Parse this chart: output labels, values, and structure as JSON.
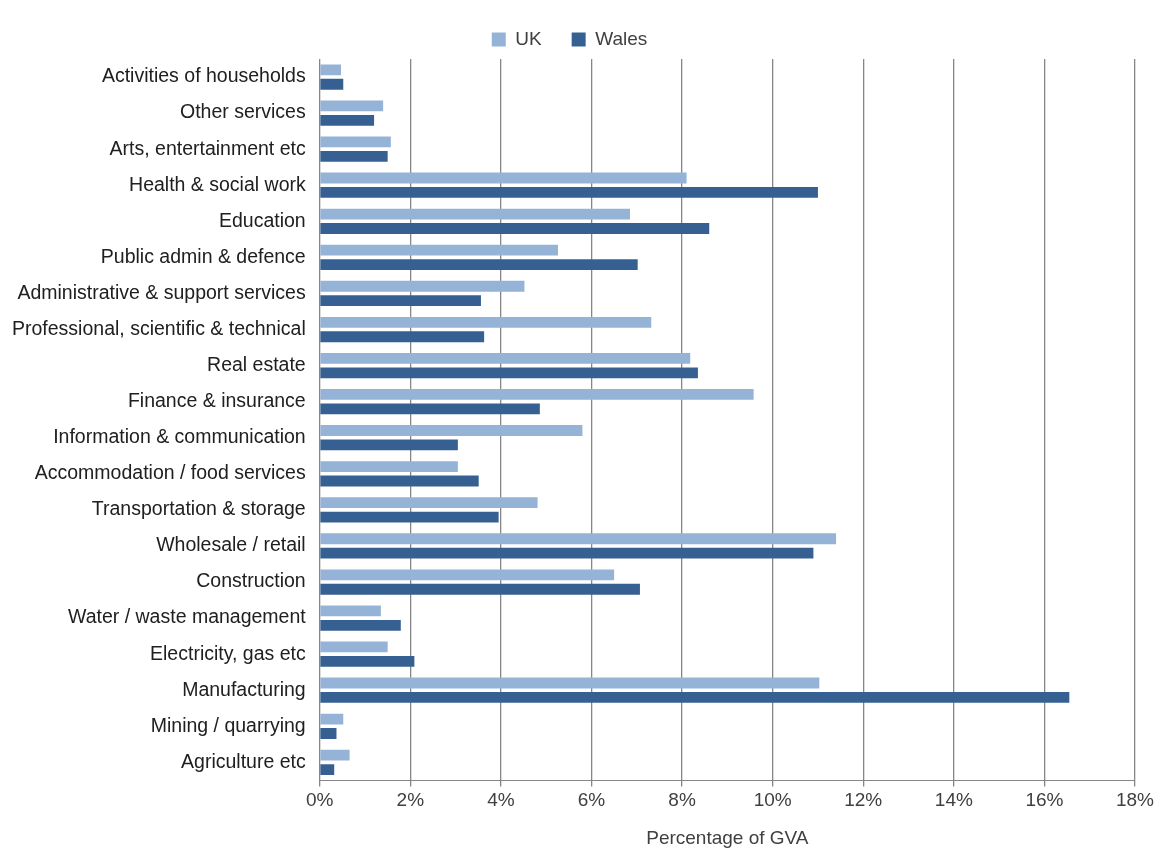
{
  "chart_data": {
    "type": "bar",
    "orientation": "horizontal",
    "xlabel": "Percentage of GVA",
    "categories": [
      "Activities of households",
      "Other services",
      "Arts, entertainment etc",
      "Health & social work",
      "Education",
      "Public admin & defence",
      "Administrative & support services",
      "Professional, scientific & technical",
      "Real estate",
      "Finance & insurance",
      "Information & communication",
      "Accommodation / food services",
      "Transportation & storage",
      "Wholesale / retail",
      "Construction",
      "Water / waste management",
      "Electricity, gas etc",
      "Manufacturing",
      "Mining / quarrying",
      "Agriculture etc"
    ],
    "series": [
      {
        "name": "UK",
        "color": "#95b3d7",
        "values": [
          0.47,
          1.4,
          1.57,
          8.1,
          6.85,
          5.26,
          4.52,
          7.32,
          8.18,
          9.58,
          5.8,
          3.05,
          4.81,
          11.4,
          6.5,
          1.35,
          1.5,
          11.03,
          0.52,
          0.66
        ]
      },
      {
        "name": "Wales",
        "color": "#376092",
        "values": [
          0.52,
          1.2,
          1.5,
          11.0,
          8.6,
          7.02,
          3.56,
          3.63,
          8.35,
          4.86,
          3.05,
          3.51,
          3.95,
          10.9,
          7.07,
          1.79,
          2.09,
          16.55,
          0.37,
          0.32
        ]
      }
    ],
    "xlim": [
      0,
      18
    ],
    "xticks": [
      {
        "value": 0,
        "label": "0%"
      },
      {
        "value": 2,
        "label": "2%"
      },
      {
        "value": 4,
        "label": "4%"
      },
      {
        "value": 6,
        "label": "6%"
      },
      {
        "value": 8,
        "label": "8%"
      },
      {
        "value": 10,
        "label": "10%"
      },
      {
        "value": 12,
        "label": "12%"
      },
      {
        "value": 14,
        "label": "14%"
      },
      {
        "value": 16,
        "label": "16%"
      },
      {
        "value": 18,
        "label": "18%"
      }
    ],
    "grid": "x",
    "legend": "top"
  }
}
